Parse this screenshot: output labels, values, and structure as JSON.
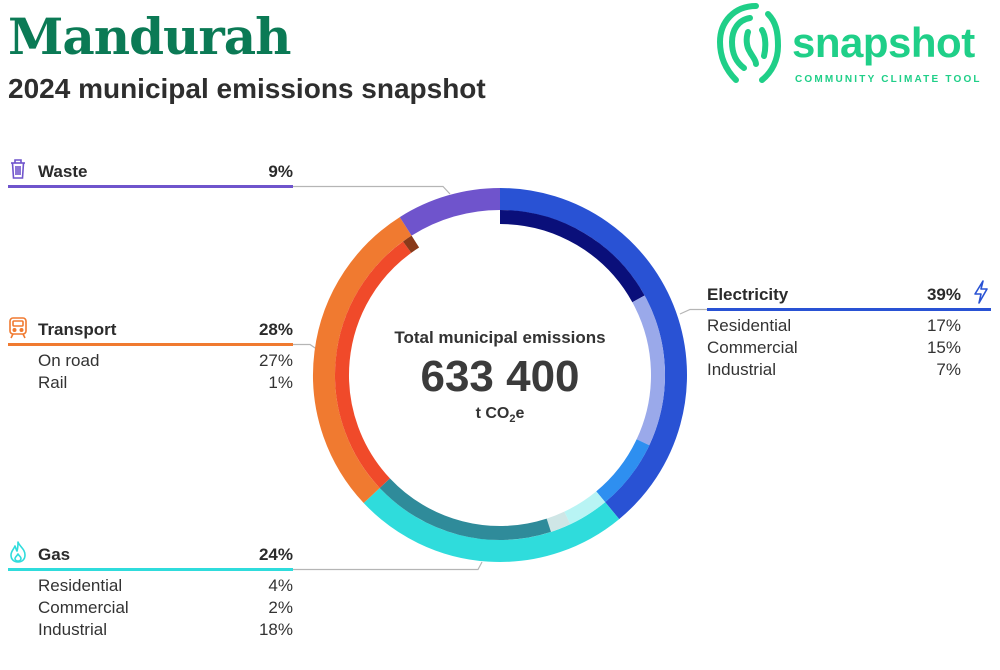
{
  "header": {
    "title": "Mandurah",
    "subtitle": "2024 municipal emissions snapshot"
  },
  "brand": {
    "name": "snapshot",
    "tagline": "COMMUNITY CLIMATE TOOL",
    "color": "#1fcf88"
  },
  "center": {
    "label": "Total municipal emissions",
    "value": "633 400",
    "unit_prefix": "t CO",
    "unit_sub": "2",
    "unit_suffix": "e"
  },
  "chart_data": {
    "type": "pie",
    "title": "2024 municipal emissions snapshot",
    "total": 633400,
    "unit": "t CO2e",
    "categories": [
      {
        "name": "Electricity",
        "percent": 39,
        "color": "#2952d4",
        "icon": "lightning-icon",
        "subcategories": [
          {
            "name": "Residential",
            "percent": 17,
            "color": "#0a0f7a"
          },
          {
            "name": "Commercial",
            "percent": 15,
            "color": "#9aa9ea"
          },
          {
            "name": "Industrial",
            "percent": 7,
            "color": "#2e8ff0"
          }
        ]
      },
      {
        "name": "Gas",
        "percent": 24,
        "color": "#2fdcdc",
        "icon": "flame-icon",
        "subcategories": [
          {
            "name": "Residential",
            "percent": 4,
            "color": "#b8f4f4"
          },
          {
            "name": "Commercial",
            "percent": 2,
            "color": "#cfe6e6"
          },
          {
            "name": "Industrial",
            "percent": 18,
            "color": "#2f8b9a"
          }
        ]
      },
      {
        "name": "Transport",
        "percent": 28,
        "color": "#f07a30",
        "icon": "train-icon",
        "subcategories": [
          {
            "name": "On road",
            "percent": 27,
            "color": "#f04a2a"
          },
          {
            "name": "Rail",
            "percent": 1,
            "color": "#8a3a1a"
          }
        ]
      },
      {
        "name": "Waste",
        "percent": 9,
        "color": "#6f54cc",
        "icon": "bin-icon",
        "subcategories": []
      }
    ]
  }
}
